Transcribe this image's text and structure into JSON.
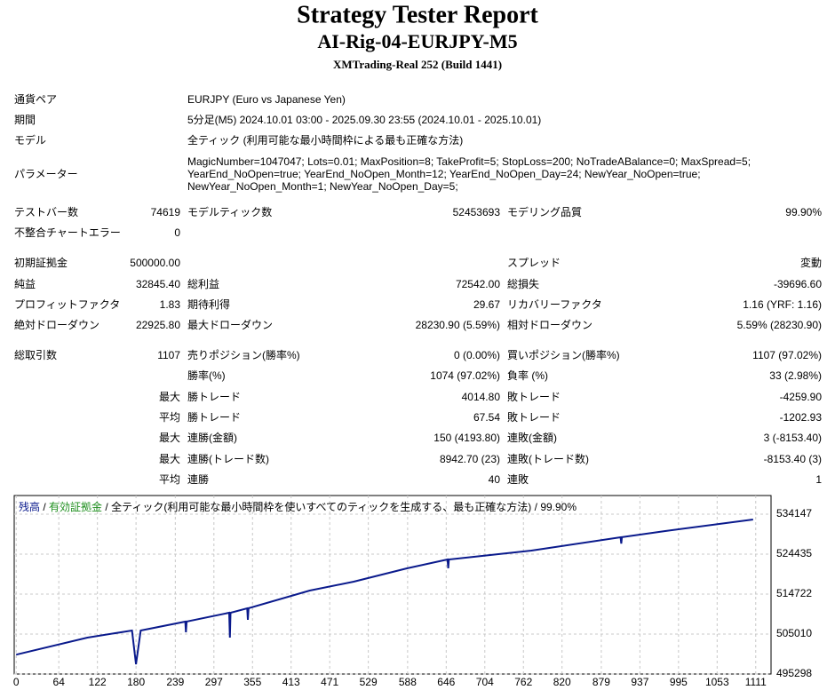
{
  "header": {
    "title": "Strategy Tester Report",
    "subtitle": "AI-Rig-04-EURJPY-M5",
    "build": "XMTrading-Real 252 (Build 1441)"
  },
  "info": [
    {
      "label": "通貨ペア",
      "value": [
        "EURJPY (Euro vs Japanese Yen)"
      ]
    },
    {
      "label": "期間",
      "value": [
        "5分足(M5) 2024.10.01 03:00 - 2025.09.30 23:55 (2024.10.01 - 2025.10.01)"
      ]
    },
    {
      "label": "モデル",
      "value": [
        "全ティック (利用可能な最小時間枠による最も正確な方法)"
      ]
    },
    {
      "label": "パラメーター",
      "value": [
        "MagicNumber=1047047; Lots=0.01; MaxPosition=8; TakeProfit=5; StopLoss=200; NoTradeABalance=0; MaxSpread=5;",
        "YearEnd_NoOpen=true; YearEnd_NoOpen_Month=12; YearEnd_NoOpen_Day=24; NewYear_NoOpen=true;",
        "NewYear_NoOpen_Month=1; NewYear_NoOpen_Day=5;"
      ]
    }
  ],
  "stats": [
    [
      "テストバー数",
      "74619",
      "モデルティック数",
      "52453693",
      "モデリング品質",
      "99.90%"
    ],
    [
      "不整合チャートエラー",
      "0",
      null,
      null,
      null,
      null
    ],
    [
      "初期証拠金",
      "500000.00",
      null,
      null,
      "スプレッド",
      "変動"
    ],
    [
      "純益",
      "32845.40",
      "総利益",
      "72542.00",
      "総損失",
      "-39696.60"
    ],
    [
      "プロフィットファクタ",
      "1.83",
      "期待利得",
      "29.67",
      "リカバリーファクタ",
      "1.16 (YRF: 1.16)"
    ],
    [
      "絶対ドローダウン",
      "22925.80",
      "最大ドローダウン",
      "28230.90 (5.59%)",
      "相対ドローダウン",
      "5.59% (28230.90)"
    ],
    [
      "総取引数",
      "1107",
      "売りポジション(勝率%)",
      "0 (0.00%)",
      "買いポジション(勝率%)",
      "1107 (97.02%)"
    ],
    [
      null,
      null,
      "勝率(%)",
      "1074 (97.02%)",
      "負率 (%)",
      "33 (2.98%)"
    ],
    [
      null,
      "最大",
      "勝トレード",
      "4014.80",
      "敗トレード",
      "-4259.90"
    ],
    [
      null,
      "平均",
      "勝トレード",
      "67.54",
      "敗トレード",
      "-1202.93"
    ],
    [
      null,
      "最大",
      "連勝(金額)",
      "150 (4193.80)",
      "連敗(金額)",
      "3 (-8153.40)"
    ],
    [
      null,
      "最大",
      "連勝(トレード数)",
      "8942.70 (23)",
      "連敗(トレード数)",
      "-8153.40 (3)"
    ],
    [
      null,
      "平均",
      "連勝",
      "40",
      "連敗",
      "1"
    ]
  ],
  "chart_data": {
    "type": "line",
    "separator": " / ",
    "legend_extra": [
      {
        "text": "有効証拠金",
        "color": "#1f8f1f"
      },
      {
        "text": "全ティック(利用可能な最小時間枠を使いすべてのティックを生成する、最も正確な方法)",
        "color": "#000000"
      },
      {
        "text": "99.90%",
        "color": "#000000"
      }
    ],
    "x": [
      0,
      107,
      174,
      180,
      187,
      254,
      255,
      256,
      320,
      321,
      322,
      347,
      348,
      349,
      441,
      507,
      587,
      648,
      649,
      650,
      774,
      908,
      909,
      910,
      975,
      1107
    ],
    "series": [
      {
        "name": "残高",
        "color": "#0a1a8c",
        "values": [
          500000,
          504146,
          505872,
          497672,
          505870,
          508030,
          505440,
          508050,
          510188,
          504146,
          510200,
          511267,
          508462,
          511300,
          515583,
          517740,
          520978,
          523136,
          521000,
          523150,
          525294,
          528531,
          527000,
          528550,
          530042,
          532845
        ]
      }
    ],
    "xlim": [
      -3,
      1134
    ],
    "ylim": [
      495298,
      538680
    ],
    "xticks": [
      0,
      64,
      122,
      180,
      239,
      297,
      355,
      413,
      471,
      529,
      588,
      646,
      704,
      762,
      820,
      879,
      937,
      995,
      1053,
      1111
    ],
    "yticks": [
      495298,
      505010,
      514722,
      524435,
      534147
    ],
    "grid": true
  }
}
